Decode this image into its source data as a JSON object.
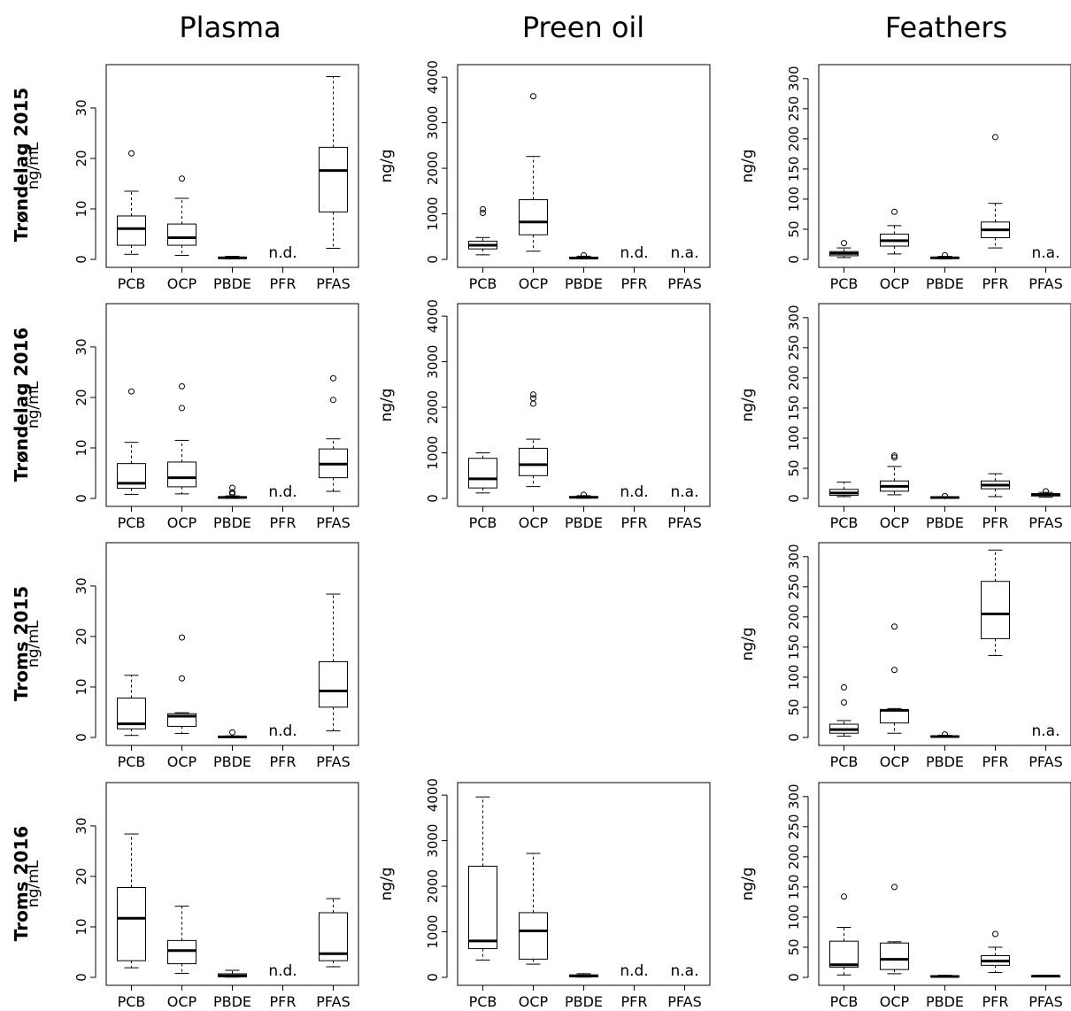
{
  "figure": {
    "columns": [
      "Plasma",
      "Preen oil",
      "Feathers"
    ],
    "rows": [
      "Trøndelag 2015",
      "Trøndelag 2016",
      "Troms 2015",
      "Troms 2016"
    ],
    "units": {
      "plasma": "ng/mL",
      "preen_oil": "ng/g",
      "feathers": "ng/g"
    },
    "categories": [
      "PCB",
      "OCP",
      "PBDE",
      "PFR",
      "PFAS"
    ],
    "notes": {
      "nd": "n.d.",
      "na": "n.a."
    }
  },
  "chart_data": [
    {
      "type": "box",
      "matrix": "Plasma",
      "group": "Trøndelag 2015",
      "ylabel": "ng/mL",
      "ylim": [
        0,
        37
      ],
      "yticks": [
        0,
        10,
        20,
        30
      ],
      "categories": [
        "PCB",
        "OCP",
        "PBDE",
        "PFR",
        "PFAS"
      ],
      "boxes": [
        {
          "category": "PCB",
          "min": 1,
          "q1": 2.8,
          "median": 6.1,
          "q3": 8.6,
          "max": 13.5,
          "outliers": [
            21
          ]
        },
        {
          "category": "OCP",
          "min": 0.8,
          "q1": 2.8,
          "median": 4.3,
          "q3": 7,
          "max": 12.1,
          "outliers": [
            16
          ]
        },
        {
          "category": "PBDE",
          "min": 0.1,
          "q1": 0.2,
          "median": 0.3,
          "q3": 0.4,
          "max": 0.6,
          "outliers": []
        },
        {
          "category": "PFR",
          "note": "n.d."
        },
        {
          "category": "PFAS",
          "min": 2.2,
          "q1": 9.4,
          "median": 17.6,
          "q3": 22.2,
          "max": 36.2,
          "outliers": []
        }
      ]
    },
    {
      "type": "box",
      "matrix": "Preen oil",
      "group": "Trøndelag 2015",
      "ylabel": "ng/g",
      "ylim": [
        0,
        4100
      ],
      "yticks": [
        0,
        1000,
        2000,
        3000,
        4000
      ],
      "categories": [
        "PCB",
        "OCP",
        "PBDE",
        "PFR",
        "PFAS"
      ],
      "boxes": [
        {
          "category": "PCB",
          "min": 100,
          "q1": 230,
          "median": 310,
          "q3": 400,
          "max": 480,
          "outliers": [
            1020,
            1100
          ]
        },
        {
          "category": "OCP",
          "min": 180,
          "q1": 540,
          "median": 820,
          "q3": 1310,
          "max": 2260,
          "outliers": [
            3580
          ]
        },
        {
          "category": "PBDE",
          "min": 10,
          "q1": 20,
          "median": 30,
          "q3": 50,
          "max": 70,
          "outliers": [
            90
          ]
        },
        {
          "category": "PFR",
          "note": "n.d."
        },
        {
          "category": "PFAS",
          "note": "n.a."
        }
      ]
    },
    {
      "type": "box",
      "matrix": "Feathers",
      "group": "Trøndelag 2015",
      "ylabel": "ng/g",
      "ylim": [
        0,
        310
      ],
      "yticks": [
        0,
        50,
        100,
        150,
        200,
        250,
        300
      ],
      "categories": [
        "PCB",
        "OCP",
        "PBDE",
        "PFR",
        "PFAS"
      ],
      "boxes": [
        {
          "category": "PCB",
          "min": 3,
          "q1": 6,
          "median": 10,
          "q3": 13,
          "max": 19,
          "outliers": [
            27
          ]
        },
        {
          "category": "OCP",
          "min": 9,
          "q1": 22,
          "median": 31,
          "q3": 42,
          "max": 56,
          "outliers": [
            79
          ]
        },
        {
          "category": "PBDE",
          "min": 1,
          "q1": 1.5,
          "median": 2.5,
          "q3": 3.5,
          "max": 5,
          "outliers": [
            7
          ]
        },
        {
          "category": "PFR",
          "min": 19,
          "q1": 36,
          "median": 49,
          "q3": 62,
          "max": 93,
          "outliers": [
            203
          ]
        },
        {
          "category": "PFAS",
          "note": "n.a."
        }
      ]
    },
    {
      "type": "box",
      "matrix": "Plasma",
      "group": "Trøndelag 2016",
      "ylabel": "ng/mL",
      "ylim": [
        0,
        37
      ],
      "yticks": [
        0,
        10,
        20,
        30
      ],
      "categories": [
        "PCB",
        "OCP",
        "PBDE",
        "PFR",
        "PFAS"
      ],
      "boxes": [
        {
          "category": "PCB",
          "min": 0.8,
          "q1": 2,
          "median": 3,
          "q3": 6.9,
          "max": 11.1,
          "outliers": [
            21.2
          ]
        },
        {
          "category": "OCP",
          "min": 0.9,
          "q1": 2.3,
          "median": 4.1,
          "q3": 7.2,
          "max": 11.5,
          "outliers": [
            17.9,
            22.2
          ]
        },
        {
          "category": "PBDE",
          "min": 0,
          "q1": 0.1,
          "median": 0.2,
          "q3": 0.3,
          "max": 0.5,
          "outliers": [
            0.9,
            1.2,
            2.1
          ]
        },
        {
          "category": "PFR",
          "note": "n.d."
        },
        {
          "category": "PFAS",
          "min": 1.4,
          "q1": 4.1,
          "median": 6.8,
          "q3": 9.8,
          "max": 11.8,
          "outliers": [
            19.5,
            23.8
          ]
        }
      ]
    },
    {
      "type": "box",
      "matrix": "Preen oil",
      "group": "Trøndelag 2016",
      "ylabel": "ng/g",
      "ylim": [
        0,
        4100
      ],
      "yticks": [
        0,
        1000,
        2000,
        3000,
        4000
      ],
      "categories": [
        "PCB",
        "OCP",
        "PBDE",
        "PFR",
        "PFAS"
      ],
      "boxes": [
        {
          "category": "PCB",
          "min": 120,
          "q1": 230,
          "median": 430,
          "q3": 880,
          "max": 1000,
          "outliers": []
        },
        {
          "category": "OCP",
          "min": 260,
          "q1": 500,
          "median": 740,
          "q3": 1100,
          "max": 1300,
          "outliers": [
            2080,
            2200,
            2280
          ]
        },
        {
          "category": "PBDE",
          "min": 5,
          "q1": 15,
          "median": 25,
          "q3": 40,
          "max": 60,
          "outliers": [
            80
          ]
        },
        {
          "category": "PFR",
          "note": "n.d."
        },
        {
          "category": "PFAS",
          "note": "n.a."
        }
      ]
    },
    {
      "type": "box",
      "matrix": "Feathers",
      "group": "Trøndelag 2016",
      "ylabel": "ng/g",
      "ylim": [
        0,
        310
      ],
      "yticks": [
        0,
        50,
        100,
        150,
        200,
        250,
        300
      ],
      "categories": [
        "PCB",
        "OCP",
        "PBDE",
        "PFR",
        "PFAS"
      ],
      "boxes": [
        {
          "category": "PCB",
          "min": 3,
          "q1": 5,
          "median": 9,
          "q3": 15,
          "max": 27,
          "outliers": []
        },
        {
          "category": "OCP",
          "min": 6,
          "q1": 12,
          "median": 20,
          "q3": 29,
          "max": 53,
          "outliers": [
            68,
            71
          ]
        },
        {
          "category": "PBDE",
          "min": 0.5,
          "q1": 1,
          "median": 1.5,
          "q3": 2,
          "max": 3,
          "outliers": [
            4
          ]
        },
        {
          "category": "PFR",
          "min": 3,
          "q1": 16,
          "median": 22,
          "q3": 29,
          "max": 41,
          "outliers": []
        },
        {
          "category": "PFAS",
          "min": 2,
          "q1": 4,
          "median": 6,
          "q3": 8,
          "max": 10,
          "outliers": [
            12
          ]
        }
      ]
    },
    {
      "type": "box",
      "matrix": "Plasma",
      "group": "Troms 2015",
      "ylabel": "ng/mL",
      "ylim": [
        0,
        37
      ],
      "yticks": [
        0,
        10,
        20,
        30
      ],
      "categories": [
        "PCB",
        "OCP",
        "PBDE",
        "PFR",
        "PFAS"
      ],
      "boxes": [
        {
          "category": "PCB",
          "min": 0.4,
          "q1": 1.7,
          "median": 2.7,
          "q3": 7.8,
          "max": 12.3,
          "outliers": []
        },
        {
          "category": "OCP",
          "min": 0.8,
          "q1": 2.2,
          "median": 4.2,
          "q3": 4.7,
          "max": 4.9,
          "outliers": [
            11.7,
            19.8
          ]
        },
        {
          "category": "PBDE",
          "min": 0,
          "q1": 0.05,
          "median": 0.1,
          "q3": 0.2,
          "max": 0.3,
          "outliers": [
            1
          ]
        },
        {
          "category": "PFR",
          "note": "n.d."
        },
        {
          "category": "PFAS",
          "min": 1.3,
          "q1": 6,
          "median": 9.2,
          "q3": 15,
          "max": 28.4,
          "outliers": []
        }
      ]
    },
    {
      "type": "box",
      "matrix": "Feathers",
      "group": "Troms 2015",
      "ylabel": "ng/g",
      "ylim": [
        0,
        310
      ],
      "yticks": [
        0,
        50,
        100,
        150,
        200,
        250,
        300
      ],
      "categories": [
        "PCB",
        "OCP",
        "PBDE",
        "PFR",
        "PFAS"
      ],
      "boxes": [
        {
          "category": "PCB",
          "min": 2,
          "q1": 7,
          "median": 13,
          "q3": 22,
          "max": 28,
          "outliers": [
            58,
            83
          ]
        },
        {
          "category": "OCP",
          "min": 7,
          "q1": 24,
          "median": 45,
          "q3": 46,
          "max": 48,
          "outliers": [
            112,
            184
          ]
        },
        {
          "category": "PBDE",
          "min": 0.5,
          "q1": 1,
          "median": 1.5,
          "q3": 2.5,
          "max": 3.5,
          "outliers": [
            5
          ]
        },
        {
          "category": "PFR",
          "min": 136,
          "q1": 164,
          "median": 205,
          "q3": 259,
          "max": 311,
          "outliers": []
        },
        {
          "category": "PFAS",
          "note": "n.a."
        }
      ]
    },
    {
      "type": "box",
      "matrix": "Plasma",
      "group": "Troms 2016",
      "ylabel": "ng/mL",
      "ylim": [
        0,
        37
      ],
      "yticks": [
        0,
        10,
        20,
        30
      ],
      "categories": [
        "PCB",
        "OCP",
        "PBDE",
        "PFR",
        "PFAS"
      ],
      "boxes": [
        {
          "category": "PCB",
          "min": 1.9,
          "q1": 3.3,
          "median": 11.7,
          "q3": 17.8,
          "max": 28.4,
          "outliers": []
        },
        {
          "category": "OCP",
          "min": 0.8,
          "q1": 2.7,
          "median": 5.3,
          "q3": 7.3,
          "max": 14.1,
          "outliers": []
        },
        {
          "category": "PBDE",
          "min": 0.05,
          "q1": 0.1,
          "median": 0.3,
          "q3": 0.7,
          "max": 1.4,
          "outliers": []
        },
        {
          "category": "PFR",
          "note": "n.d."
        },
        {
          "category": "PFAS",
          "min": 2.1,
          "q1": 3.3,
          "median": 4.7,
          "q3": 12.8,
          "max": 15.6,
          "outliers": []
        }
      ]
    },
    {
      "type": "box",
      "matrix": "Preen oil",
      "group": "Troms 2016",
      "ylabel": "ng/g",
      "ylim": [
        0,
        4100
      ],
      "yticks": [
        0,
        1000,
        2000,
        3000,
        4000
      ],
      "categories": [
        "PCB",
        "OCP",
        "PBDE",
        "PFR",
        "PFAS"
      ],
      "boxes": [
        {
          "category": "PCB",
          "min": 380,
          "q1": 630,
          "median": 800,
          "q3": 2440,
          "max": 3960,
          "outliers": []
        },
        {
          "category": "OCP",
          "min": 290,
          "q1": 400,
          "median": 1020,
          "q3": 1420,
          "max": 2720,
          "outliers": []
        },
        {
          "category": "PBDE",
          "min": 5,
          "q1": 15,
          "median": 30,
          "q3": 55,
          "max": 80,
          "outliers": []
        },
        {
          "category": "PFR",
          "note": "n.d."
        },
        {
          "category": "PFAS",
          "note": "n.a."
        }
      ]
    },
    {
      "type": "box",
      "matrix": "Feathers",
      "group": "Troms 2016",
      "ylabel": "ng/g",
      "ylim": [
        0,
        310
      ],
      "yticks": [
        0,
        50,
        100,
        150,
        200,
        250,
        300
      ],
      "categories": [
        "PCB",
        "OCP",
        "PBDE",
        "PFR",
        "PFAS"
      ],
      "boxes": [
        {
          "category": "PCB",
          "min": 4,
          "q1": 17,
          "median": 21,
          "q3": 60,
          "max": 83,
          "outliers": [
            134
          ]
        },
        {
          "category": "OCP",
          "min": 6,
          "q1": 13,
          "median": 30,
          "q3": 57,
          "max": 59,
          "outliers": [
            150
          ]
        },
        {
          "category": "PBDE",
          "min": 0.5,
          "q1": 1,
          "median": 1.5,
          "q3": 2.5,
          "max": 3.5,
          "outliers": []
        },
        {
          "category": "PFR",
          "min": 8,
          "q1": 20,
          "median": 27,
          "q3": 36,
          "max": 50,
          "outliers": [
            72
          ]
        },
        {
          "category": "PFAS",
          "min": 1,
          "q1": 1.5,
          "median": 2,
          "q3": 2.5,
          "max": 3.5,
          "outliers": []
        }
      ]
    }
  ]
}
